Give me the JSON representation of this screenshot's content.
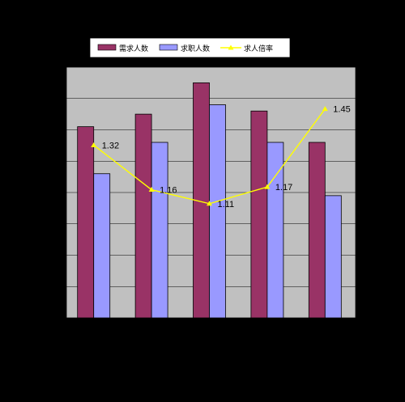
{
  "chart_data": {
    "type": "bar",
    "categories": [
      "",
      "",
      "",
      "",
      ""
    ],
    "series": [
      {
        "name": "需求人数",
        "kind": "bar",
        "values": [
          61,
          65,
          75,
          66,
          56
        ]
      },
      {
        "name": "求职人数",
        "kind": "bar",
        "values": [
          46,
          56,
          68,
          56,
          39
        ]
      },
      {
        "name": "求人倍率",
        "kind": "line",
        "values": [
          1.32,
          1.16,
          1.11,
          1.17,
          1.45
        ],
        "labels": [
          "1.32",
          "1.16",
          "1.11",
          "1.17",
          "1.45"
        ]
      }
    ],
    "ylim": [
      0,
      80
    ],
    "y2lim": [
      0.7,
      1.6
    ],
    "grid": true,
    "legend": "top"
  },
  "colors": {
    "page_background": "#000000",
    "plot_background": "#c0c0c0",
    "bar_demand": "#993366",
    "bar_jobseeker": "#9999ff",
    "line_ratio": "#ffff00",
    "gridline": "#000000",
    "axis": "#000000"
  }
}
